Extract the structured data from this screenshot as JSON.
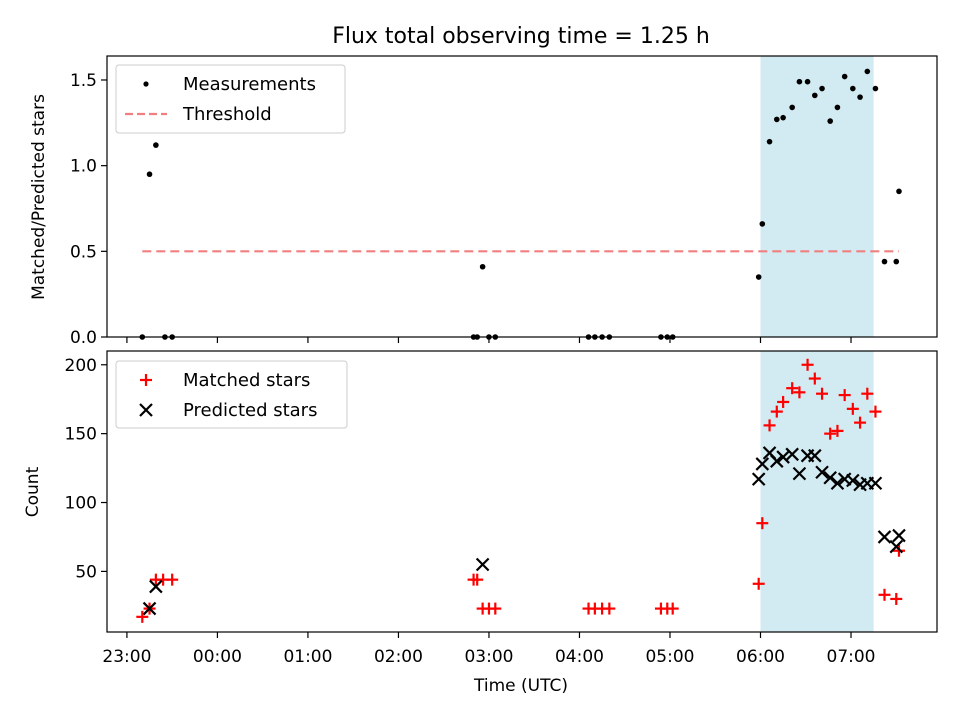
{
  "title": "Flux total observing time = 1.25 h",
  "colors": {
    "highlight": "#add8e6",
    "threshold": "#f08080",
    "matched": "#ff0000",
    "predicted": "#000000",
    "measurement": "#000000"
  },
  "x_ticks": [
    {
      "value": -1,
      "label": "23:00"
    },
    {
      "value": 0,
      "label": "00:00"
    },
    {
      "value": 1,
      "label": "01:00"
    },
    {
      "value": 2,
      "label": "02:00"
    },
    {
      "value": 3,
      "label": "03:00"
    },
    {
      "value": 4,
      "label": "04:00"
    },
    {
      "value": 5,
      "label": "05:00"
    },
    {
      "value": 6,
      "label": "06:00"
    },
    {
      "value": 7,
      "label": "07:00"
    }
  ],
  "chart_data": [
    {
      "type": "scatter",
      "title": "Flux total observing time = 1.25 h",
      "xlabel": "",
      "ylabel": "Matched/Predicted stars",
      "xlim": [
        -1.22,
        7.95
      ],
      "ylim": [
        0,
        1.64
      ],
      "yticks": [
        0,
        0.5,
        1.0,
        1.5
      ],
      "ytick_labels": [
        "0.0",
        "0.5",
        "1.0",
        "1.5"
      ],
      "grid": false,
      "legend": "top-left",
      "highlight_span": [
        6.0,
        7.25
      ],
      "series": [
        {
          "name": "Measurements",
          "marker": "dot",
          "points": [
            [
              -0.83,
              0.0
            ],
            [
              -0.75,
              0.95
            ],
            [
              -0.68,
              1.12
            ],
            [
              -0.58,
              0.0
            ],
            [
              -0.5,
              0.0
            ],
            [
              2.83,
              0.0
            ],
            [
              2.87,
              0.0
            ],
            [
              2.93,
              0.41
            ],
            [
              3.0,
              0.0
            ],
            [
              3.07,
              0.0
            ],
            [
              4.1,
              0.0
            ],
            [
              4.17,
              0.0
            ],
            [
              4.25,
              0.0
            ],
            [
              4.33,
              0.0
            ],
            [
              4.9,
              0.0
            ],
            [
              4.97,
              0.0
            ],
            [
              5.03,
              0.0
            ],
            [
              5.98,
              0.35
            ],
            [
              6.02,
              0.66
            ],
            [
              6.1,
              1.14
            ],
            [
              6.18,
              1.27
            ],
            [
              6.25,
              1.28
            ],
            [
              6.35,
              1.34
            ],
            [
              6.43,
              1.49
            ],
            [
              6.52,
              1.49
            ],
            [
              6.6,
              1.41
            ],
            [
              6.68,
              1.45
            ],
            [
              6.77,
              1.26
            ],
            [
              6.85,
              1.34
            ],
            [
              6.93,
              1.52
            ],
            [
              7.02,
              1.45
            ],
            [
              7.1,
              1.4
            ],
            [
              7.18,
              1.55
            ],
            [
              7.27,
              1.45
            ],
            [
              7.37,
              0.44
            ],
            [
              7.5,
              0.44
            ],
            [
              7.53,
              0.85
            ]
          ]
        },
        {
          "name": "Threshold",
          "marker": "dashed-line",
          "points": [
            [
              -0.83,
              0.5
            ],
            [
              7.53,
              0.5
            ]
          ]
        }
      ]
    },
    {
      "type": "scatter",
      "xlabel": "Time (UTC)",
      "ylabel": "Count",
      "xlim": [
        -1.22,
        7.95
      ],
      "ylim": [
        6,
        210
      ],
      "yticks": [
        50,
        100,
        150,
        200
      ],
      "ytick_labels": [
        "50",
        "100",
        "150",
        "200"
      ],
      "grid": false,
      "legend": "top-left",
      "highlight_span": [
        6.0,
        7.25
      ],
      "series": [
        {
          "name": "Matched stars",
          "marker": "plus",
          "points": [
            [
              -0.83,
              17
            ],
            [
              -0.75,
              23
            ],
            [
              -0.68,
              44
            ],
            [
              -0.6,
              44
            ],
            [
              -0.5,
              44
            ],
            [
              2.83,
              44
            ],
            [
              2.87,
              44
            ],
            [
              2.93,
              23
            ],
            [
              3.0,
              23
            ],
            [
              3.07,
              23
            ],
            [
              4.1,
              23
            ],
            [
              4.17,
              23
            ],
            [
              4.25,
              23
            ],
            [
              4.33,
              23
            ],
            [
              4.9,
              23
            ],
            [
              4.97,
              23
            ],
            [
              5.03,
              23
            ],
            [
              5.98,
              41
            ],
            [
              6.02,
              85
            ],
            [
              6.1,
              156
            ],
            [
              6.18,
              166
            ],
            [
              6.25,
              173
            ],
            [
              6.35,
              183
            ],
            [
              6.43,
              180
            ],
            [
              6.52,
              200
            ],
            [
              6.6,
              190
            ],
            [
              6.68,
              179
            ],
            [
              6.77,
              150
            ],
            [
              6.85,
              152
            ],
            [
              6.93,
              178
            ],
            [
              7.02,
              168
            ],
            [
              7.1,
              158
            ],
            [
              7.18,
              179
            ],
            [
              7.27,
              166
            ],
            [
              7.37,
              33
            ],
            [
              7.5,
              30
            ],
            [
              7.53,
              65
            ]
          ]
        },
        {
          "name": "Predicted stars",
          "marker": "x",
          "points": [
            [
              -0.75,
              23
            ],
            [
              -0.68,
              39
            ],
            [
              2.93,
              55
            ],
            [
              5.98,
              117
            ],
            [
              6.02,
              128
            ],
            [
              6.1,
              136
            ],
            [
              6.18,
              130
            ],
            [
              6.25,
              133
            ],
            [
              6.35,
              135
            ],
            [
              6.43,
              121
            ],
            [
              6.52,
              134
            ],
            [
              6.6,
              134
            ],
            [
              6.68,
              122
            ],
            [
              6.77,
              118
            ],
            [
              6.85,
              114
            ],
            [
              6.93,
              117
            ],
            [
              7.02,
              116
            ],
            [
              7.1,
              113
            ],
            [
              7.18,
              114
            ],
            [
              7.27,
              114
            ],
            [
              7.37,
              75
            ],
            [
              7.5,
              68
            ],
            [
              7.53,
              76
            ]
          ]
        }
      ]
    }
  ]
}
